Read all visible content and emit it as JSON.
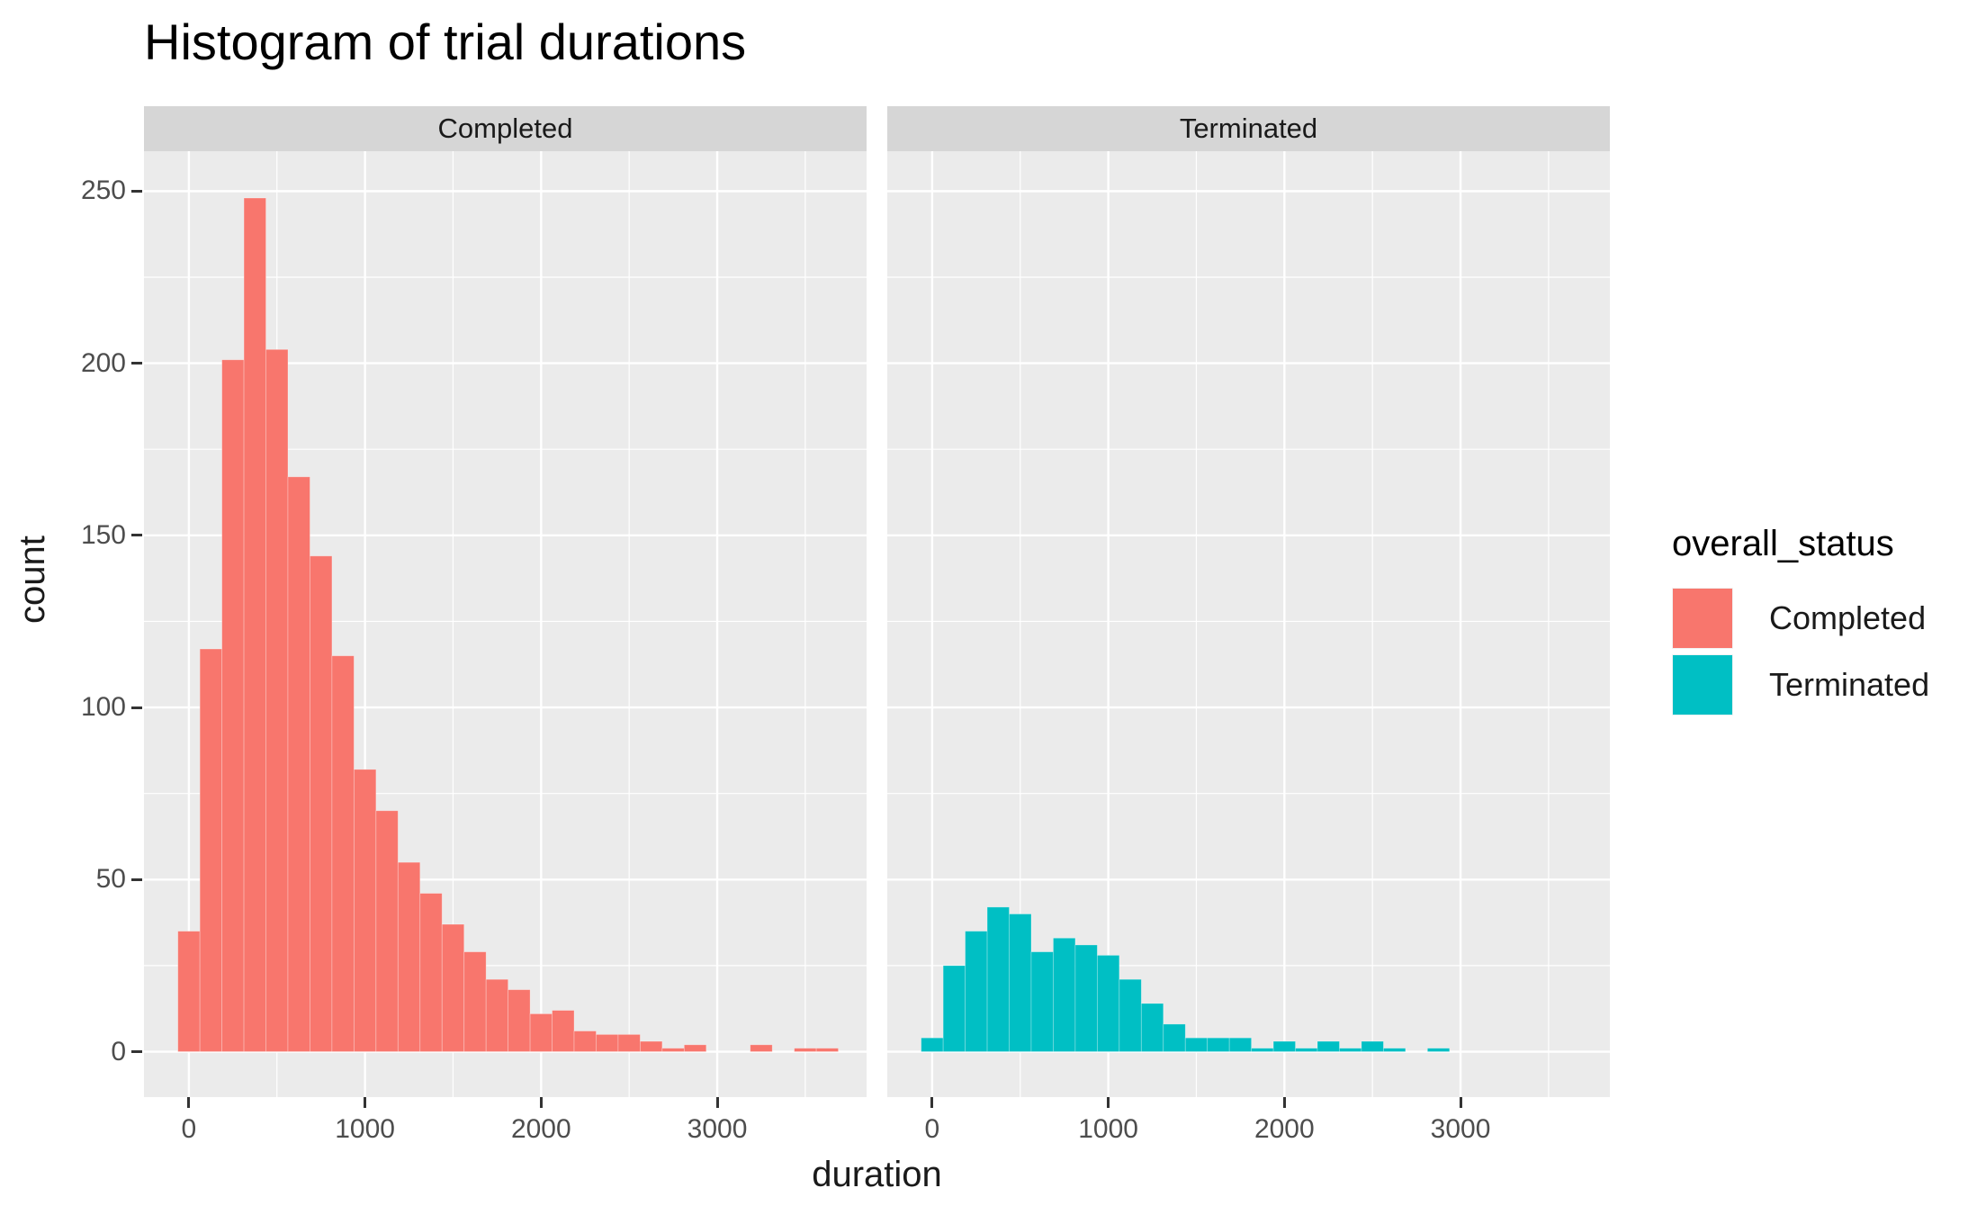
{
  "title": "Histogram of trial durations",
  "axes": {
    "x_title": "duration",
    "y_title": "count",
    "x_ticks": [
      0,
      1000,
      2000,
      3000
    ],
    "x_minor": [
      500,
      1500,
      2500,
      3500
    ],
    "y_ticks": [
      0,
      50,
      100,
      150,
      200,
      250
    ],
    "y_minor": [
      25,
      75,
      125,
      175,
      225,
      275
    ]
  },
  "facets": [
    {
      "label": "Completed"
    },
    {
      "label": "Terminated"
    }
  ],
  "legend": {
    "title": "overall_status",
    "items": [
      {
        "label": "Completed",
        "color": "#F8766D"
      },
      {
        "label": "Terminated",
        "color": "#00BFC4"
      }
    ]
  },
  "colors": {
    "panel_bg": "#EBEBEB",
    "strip_bg": "#D6D6D6",
    "gridline": "#FFFFFF",
    "tick_mark": "#333333",
    "tick_label": "#4D4D4D",
    "text": "#1a1a1a"
  },
  "chart_data": {
    "type": "bar",
    "subtype": "faceted-histogram",
    "title": "Histogram of trial durations",
    "xlabel": "duration",
    "ylabel": "count",
    "xlim": [
      -255,
      3848
    ],
    "ylim": [
      0,
      261
    ],
    "grid": "on",
    "legend_position": "right",
    "bin_width": 125,
    "bin_centers": [
      0,
      125,
      250,
      375,
      500,
      625,
      750,
      875,
      1000,
      1125,
      1250,
      1375,
      1500,
      1625,
      1750,
      1875,
      2000,
      2125,
      2250,
      2375,
      2500,
      2625,
      2750,
      2875,
      3000,
      3125,
      3250,
      3375,
      3500,
      3625,
      3750
    ],
    "series": [
      {
        "name": "Completed",
        "color": "#F8766D",
        "counts": [
          35,
          117,
          201,
          248,
          204,
          167,
          144,
          115,
          82,
          70,
          55,
          46,
          37,
          29,
          21,
          18,
          11,
          12,
          6,
          5,
          5,
          3,
          1,
          2,
          0,
          0,
          2,
          0,
          1,
          1,
          0
        ]
      },
      {
        "name": "Terminated",
        "color": "#00BFC4",
        "counts": [
          4,
          25,
          35,
          42,
          40,
          29,
          33,
          31,
          28,
          21,
          14,
          8,
          4,
          4,
          4,
          1,
          3,
          1,
          3,
          1,
          3,
          1,
          0,
          1,
          0,
          0,
          0,
          0,
          0,
          0,
          0
        ]
      }
    ]
  }
}
